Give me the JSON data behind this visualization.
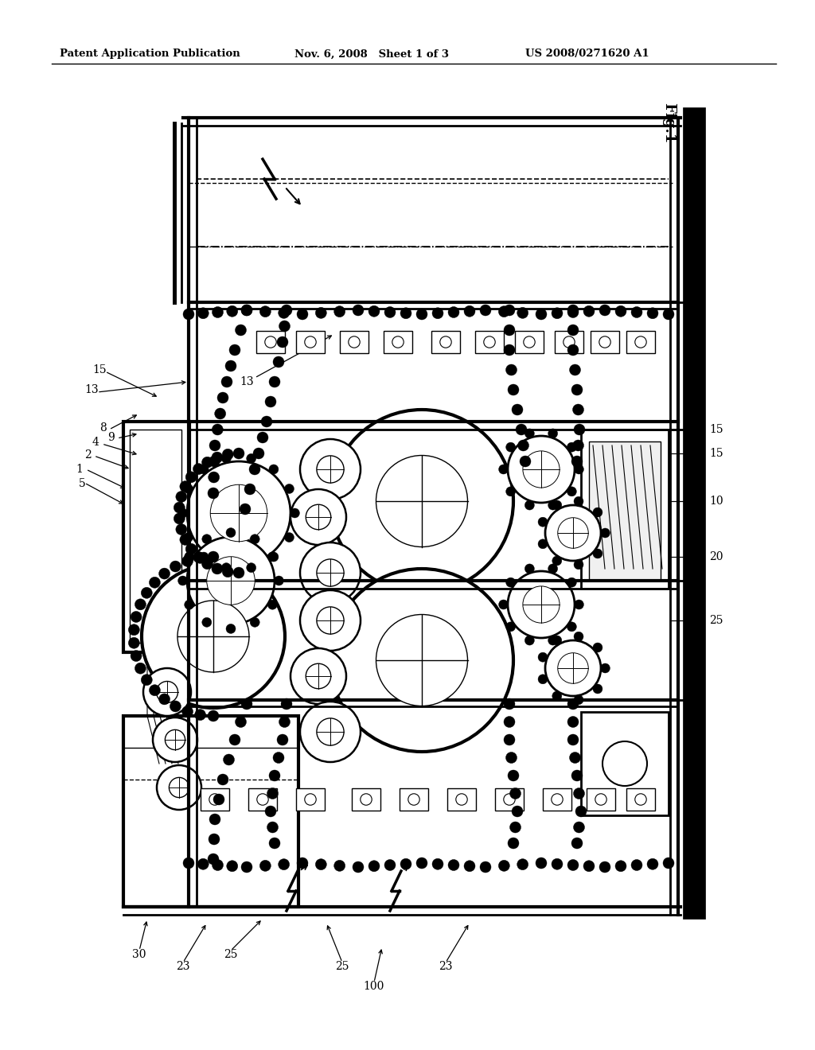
{
  "title_left": "Patent Application Publication",
  "title_mid": "Nov. 6, 2008   Sheet 1 of 3",
  "title_right": "US 2008/0271620 A1",
  "bg_color": "#ffffff",
  "line_color": "#000000",
  "fig_label": "Fig.1"
}
